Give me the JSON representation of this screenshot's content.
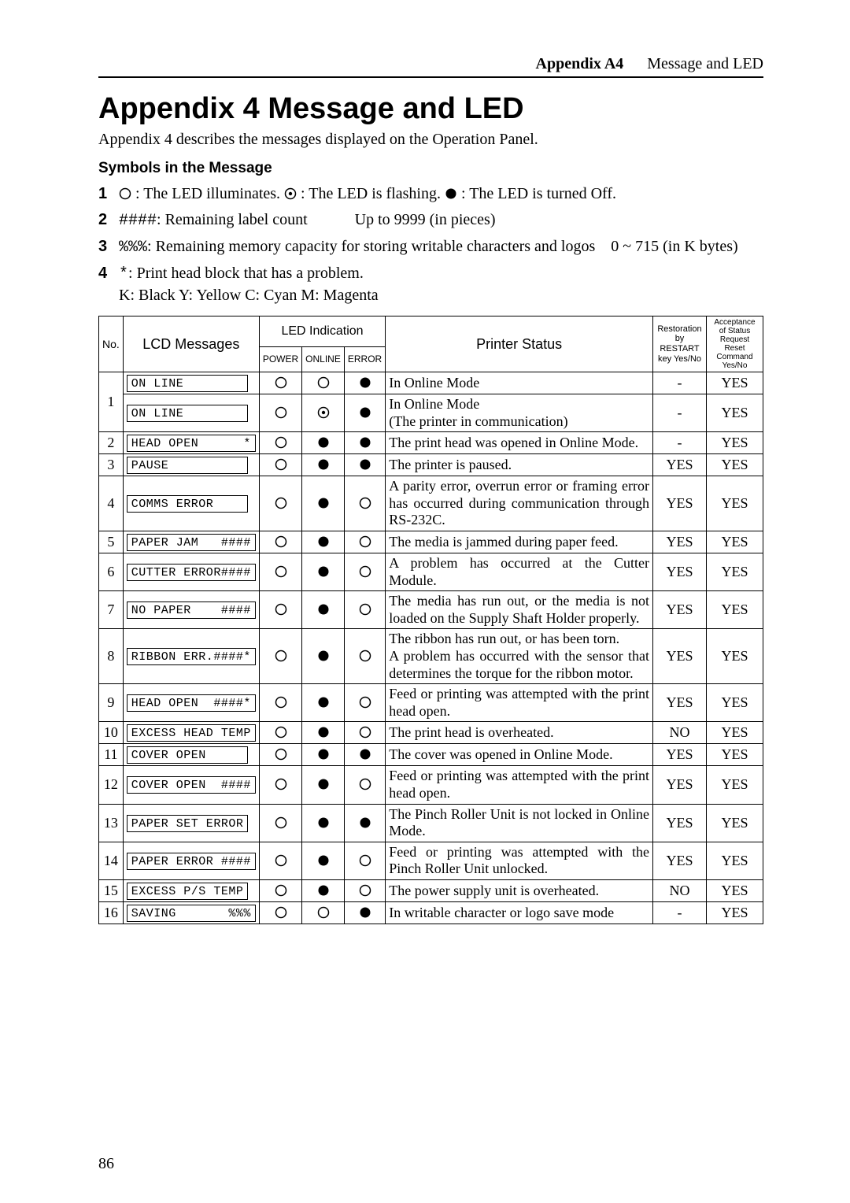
{
  "header": {
    "appendix": "Appendix A4",
    "title": "Message and LED"
  },
  "h1": "Appendix 4 Message and LED",
  "intro": "Appendix 4 describes the messages displayed on the Operation Panel.",
  "subhead": "Symbols in the Message",
  "symbols": {
    "s1a": ": The LED illuminates. ",
    "s1b": " : The LED is flashing. ",
    "s1c": " : The LED is turned Off.",
    "s2a": ": Remaining label count",
    "s2b": "Up to 9999 (in pieces)",
    "s3a": ": Remaining memory capacity for storing writable characters and logos",
    "s3b": "0 ~ 715 (in K bytes)",
    "s4a": ": Print head block that has a problem.",
    "s4b": "K: Black  Y: Yellow  C: Cyan  M: Magenta",
    "hash": "####",
    "pct": "%%%",
    "star": "*"
  },
  "th": {
    "no": "No.",
    "lcd": "LCD Messages",
    "led": "LED Indication",
    "power": "POWER",
    "online": "ONLINE",
    "error": "ERROR",
    "status": "Printer Status",
    "rest": "Restoration by RESTART key Yes/No",
    "acc": "Acceptance of Status Request Reset Command Yes/No"
  },
  "led": {
    "on": "on",
    "flash": "flash",
    "off": "off"
  },
  "rows": [
    {
      "no": "1",
      "span": 2,
      "lcd": "ON LINE",
      "p": "on",
      "o": "on",
      "e": "off",
      "status": "In Online Mode",
      "rest": "-",
      "acc": "YES"
    },
    {
      "lcd": "ON LINE",
      "p": "on",
      "o": "flash",
      "e": "off",
      "status": "In Online Mode\n(The printer in communication)",
      "rest": "-",
      "acc": "YES"
    },
    {
      "no": "2",
      "lcd": "HEAD OPEN      *",
      "p": "on",
      "o": "off",
      "e": "off",
      "status": "The print head was opened in Online Mode.",
      "rest": "-",
      "acc": "YES"
    },
    {
      "no": "3",
      "lcd": "PAUSE",
      "p": "on",
      "o": "off",
      "e": "off",
      "status": "The printer is paused.",
      "rest": "YES",
      "acc": "YES"
    },
    {
      "no": "4",
      "lcd": "COMMS ERROR",
      "p": "on",
      "o": "off",
      "e": "on",
      "status": "A parity error, overrun error or framing error has occurred during communication through RS-232C.",
      "rest": "YES",
      "acc": "YES"
    },
    {
      "no": "5",
      "lcd": "PAPER JAM   ####",
      "p": "on",
      "o": "off",
      "e": "on",
      "status": "The media is jammed during paper feed.",
      "rest": "YES",
      "acc": "YES"
    },
    {
      "no": "6",
      "lcd": "CUTTER ERROR####",
      "p": "on",
      "o": "off",
      "e": "on",
      "status": "A problem has occurred at the Cutter Module.",
      "rest": "YES",
      "acc": "YES"
    },
    {
      "no": "7",
      "lcd": "NO PAPER    ####",
      "p": "on",
      "o": "off",
      "e": "on",
      "status": "The media has run out, or the media is not loaded on the Supply Shaft Holder properly.",
      "rest": "YES",
      "acc": "YES"
    },
    {
      "no": "8",
      "lcd": "RIBBON ERR.####*",
      "p": "on",
      "o": "off",
      "e": "on",
      "status": "The ribbon has run out, or has been torn.\nA problem has occurred with the sensor that determines the torque for the ribbon motor.",
      "rest": "YES",
      "acc": "YES"
    },
    {
      "no": "9",
      "lcd": "HEAD OPEN  ####*",
      "p": "on",
      "o": "off",
      "e": "on",
      "status": "Feed or printing was attempted with the print head open.",
      "rest": "YES",
      "acc": "YES"
    },
    {
      "no": "10",
      "lcd": "EXCESS HEAD TEMP",
      "p": "on",
      "o": "off",
      "e": "on",
      "status": "The print head is overheated.",
      "rest": "NO",
      "acc": "YES"
    },
    {
      "no": "11",
      "lcd": "COVER OPEN",
      "p": "on",
      "o": "off",
      "e": "off",
      "status": "The cover was opened in Online Mode.",
      "rest": "YES",
      "acc": "YES"
    },
    {
      "no": "12",
      "lcd": "COVER OPEN  ####",
      "p": "on",
      "o": "off",
      "e": "on",
      "status": "Feed or printing was attempted with the print head open.",
      "rest": "YES",
      "acc": "YES"
    },
    {
      "no": "13",
      "lcd": "PAPER SET ERROR",
      "p": "on",
      "o": "off",
      "e": "off",
      "status": "The Pinch Roller Unit is not locked in Online Mode.",
      "rest": "YES",
      "acc": "YES"
    },
    {
      "no": "14",
      "lcd": "PAPER ERROR ####",
      "p": "on",
      "o": "off",
      "e": "on",
      "status": "Feed or printing was attempted with the Pinch Roller Unit unlocked.",
      "rest": "YES",
      "acc": "YES"
    },
    {
      "no": "15",
      "lcd": "EXCESS P/S TEMP",
      "p": "on",
      "o": "off",
      "e": "on",
      "status": "The power supply unit is overheated.",
      "rest": "NO",
      "acc": "YES"
    },
    {
      "no": "16",
      "lcd": "SAVING       %%%",
      "p": "on",
      "o": "on",
      "e": "off",
      "status": "In writable character or logo save mode",
      "rest": "-",
      "acc": "YES"
    }
  ],
  "page": "86"
}
